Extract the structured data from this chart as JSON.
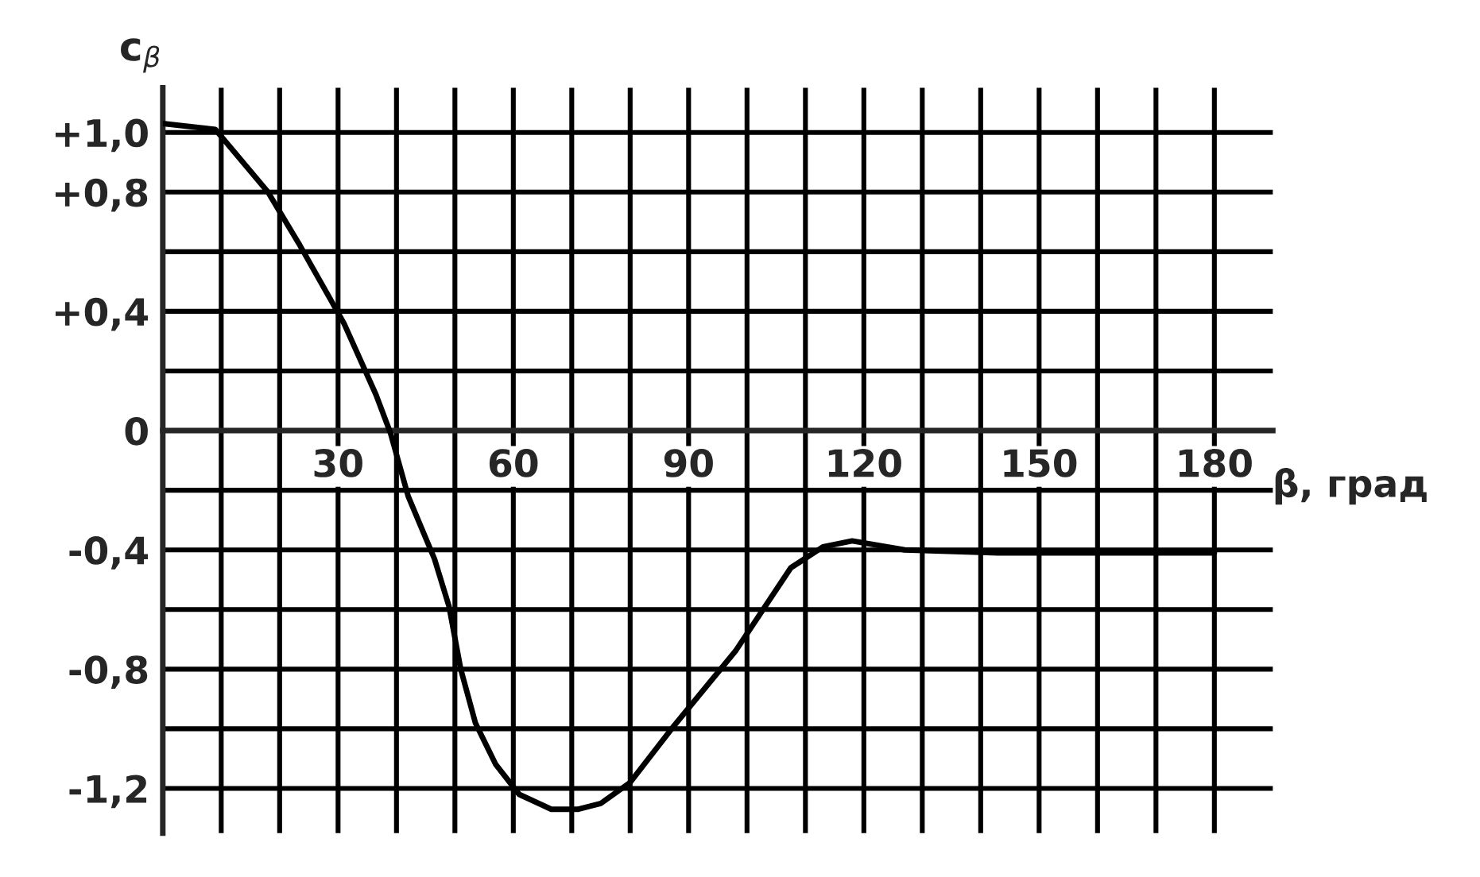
{
  "chart_data": {
    "type": "line",
    "xlabel": "β, град",
    "ylabel": "c$_{β}$",
    "x": [
      0,
      9,
      18,
      23.5,
      28.7,
      31,
      36.5,
      39,
      42,
      46.5,
      49,
      51,
      53.5,
      57,
      61,
      66.5,
      71,
      75,
      80,
      87.5,
      98,
      107.5,
      113,
      118,
      127,
      143,
      160,
      180
    ],
    "series": [
      {
        "color": "#000000",
        "values": [
          1.03,
          1.01,
          0.8,
          0.62,
          0.44,
          0.36,
          0.12,
          -0.01,
          -0.22,
          -0.43,
          -0.59,
          -0.8,
          -0.98,
          -1.12,
          -1.22,
          -1.27,
          -1.27,
          -1.25,
          -1.18,
          -0.99,
          -0.74,
          -0.46,
          -0.39,
          -0.37,
          -0.4,
          -0.41,
          -0.41,
          -0.41
        ]
      }
    ],
    "xlim": [
      0,
      190
    ],
    "ylim": [
      -1.35,
      1.15
    ],
    "xticks": [
      {
        "value": 10,
        "label": null
      },
      {
        "value": 20,
        "label": null
      },
      30,
      {
        "value": 40,
        "label": null
      },
      {
        "value": 50,
        "label": null
      },
      60,
      {
        "value": 70,
        "label": null
      },
      {
        "value": 80,
        "label": null
      },
      90,
      {
        "value": 100,
        "label": null
      },
      {
        "value": 110,
        "label": null
      },
      120,
      {
        "value": 130,
        "label": null
      },
      {
        "value": 140,
        "label": null
      },
      150,
      {
        "value": 160,
        "label": null
      },
      {
        "value": 170,
        "label": null
      },
      180
    ],
    "yticks": [
      {
        "value": 1.0,
        "label": "+1,0"
      },
      {
        "value": 0.8,
        "label": "+0,8"
      },
      {
        "value": 0.6,
        "label": null
      },
      {
        "value": 0.4,
        "label": "+0,4"
      },
      {
        "value": 0.2,
        "label": null
      },
      {
        "value": 0,
        "label": "0"
      },
      {
        "value": -0.2,
        "label": null
      },
      {
        "value": -0.4,
        "label": "-0,4"
      },
      {
        "value": -0.6,
        "label": null
      },
      {
        "value": -0.8,
        "label": "-0,8"
      },
      {
        "value": -1.0,
        "label": null
      },
      {
        "value": -1.2,
        "label": "-1,2"
      }
    ],
    "grid": true,
    "marker": "none",
    "line_style": "solid"
  }
}
